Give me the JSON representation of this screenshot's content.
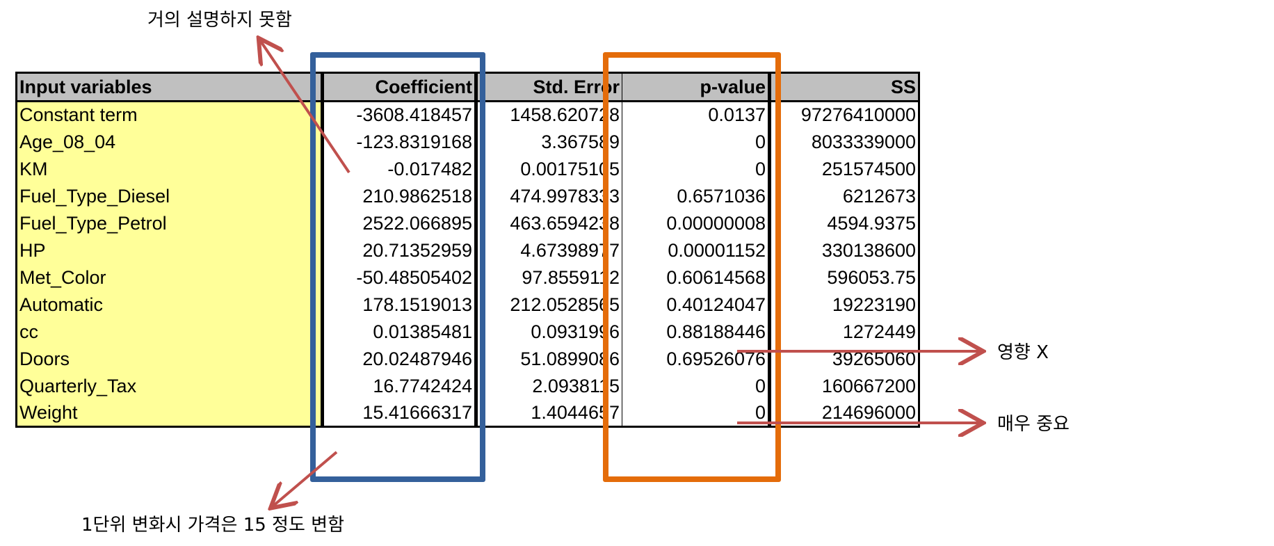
{
  "table": {
    "headers": {
      "name": "Input variables",
      "coefficient": "Coefficient",
      "std_error": "Std. Error",
      "p_value": "p-value",
      "ss": "SS"
    },
    "rows": [
      {
        "name": "Constant term",
        "coefficient": "-3608.418457",
        "std_error": "1458.620728",
        "p_value": "0.0137",
        "ss": "97276410000"
      },
      {
        "name": "Age_08_04",
        "coefficient": "-123.8319168",
        "std_error": "3.367589",
        "p_value": "0",
        "ss": "8033339000"
      },
      {
        "name": "KM",
        "coefficient": "-0.017482",
        "std_error": "0.00175105",
        "p_value": "0",
        "ss": "251574500"
      },
      {
        "name": "Fuel_Type_Diesel",
        "coefficient": "210.9862518",
        "std_error": "474.9978333",
        "p_value": "0.6571036",
        "ss": "6212673"
      },
      {
        "name": "Fuel_Type_Petrol",
        "coefficient": "2522.066895",
        "std_error": "463.6594238",
        "p_value": "0.00000008",
        "ss": "4594.9375"
      },
      {
        "name": "HP",
        "coefficient": "20.71352959",
        "std_error": "4.67398977",
        "p_value": "0.00001152",
        "ss": "330138600"
      },
      {
        "name": "Met_Color",
        "coefficient": "-50.48505402",
        "std_error": "97.8559112",
        "p_value": "0.60614568",
        "ss": "596053.75"
      },
      {
        "name": "Automatic",
        "coefficient": "178.1519013",
        "std_error": "212.0528565",
        "p_value": "0.40124047",
        "ss": "19223190"
      },
      {
        "name": "cc",
        "coefficient": "0.01385481",
        "std_error": "0.0931996",
        "p_value": "0.88188446",
        "ss": "1272449"
      },
      {
        "name": "Doors",
        "coefficient": "20.02487946",
        "std_error": "51.0899086",
        "p_value": "0.69526076",
        "ss": "39265060"
      },
      {
        "name": "Quarterly_Tax",
        "coefficient": "16.7742424",
        "std_error": "2.0938115",
        "p_value": "0",
        "ss": "160667200"
      },
      {
        "name": "Weight",
        "coefficient": "15.41666317",
        "std_error": "1.4044657",
        "p_value": "0",
        "ss": "214696000"
      }
    ]
  },
  "annotations": {
    "top": "거의 설명하지 못함",
    "bottom": "1단위 변화시 가격은 15 정도 변함",
    "right_cc": "영향 X",
    "right_tax": "매우 중요"
  },
  "colors": {
    "coefficient_box": "#34609b",
    "pvalue_box": "#e46c0a",
    "arrow": "#c0504d",
    "header_bg": "#c0c0c0",
    "name_bg": "#ffff99"
  }
}
